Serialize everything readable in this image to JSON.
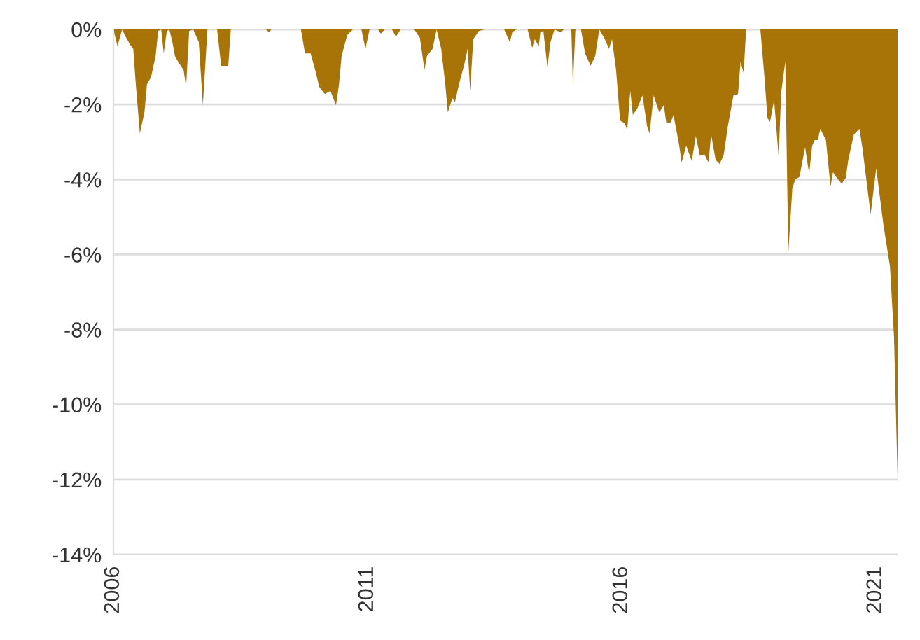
{
  "chart_data": {
    "type": "area",
    "xlim": [
      2006,
      2021.43
    ],
    "ylim": [
      -14,
      0
    ],
    "xticks": [
      2006,
      2011,
      2016,
      2021
    ],
    "yticks": [
      {
        "value": 0,
        "label": "0%"
      },
      {
        "value": -2,
        "label": "-2%"
      },
      {
        "value": -4,
        "label": "-4%"
      },
      {
        "value": -6,
        "label": "-6%"
      },
      {
        "value": -8,
        "label": "-8%"
      },
      {
        "value": -10,
        "label": "-10%"
      },
      {
        "value": -12,
        "label": "-12%"
      },
      {
        "value": -14,
        "label": "-14%"
      }
    ],
    "grid": "y",
    "series": [
      {
        "color": "#a87408",
        "x": [
          2006.0,
          2006.08,
          2006.17,
          2006.25,
          2006.33,
          2006.39,
          2006.44,
          2006.52,
          2006.61,
          2006.66,
          2006.74,
          2006.83,
          2006.88,
          2006.94,
          2006.99,
          2007.05,
          2007.1,
          2007.16,
          2007.21,
          2007.29,
          2007.38,
          2007.43,
          2007.49,
          2007.57,
          2007.68,
          2007.76,
          2007.85,
          2008.04,
          2008.12,
          2008.26,
          2008.31,
          2009.0,
          2009.06,
          2009.11,
          2009.69,
          2009.77,
          2009.88,
          2009.97,
          2010.05,
          2010.16,
          2010.27,
          2010.38,
          2010.44,
          2010.49,
          2010.6,
          2010.71,
          2010.88,
          2010.96,
          2011.04,
          2011.21,
          2011.26,
          2011.34,
          2011.48,
          2011.56,
          2011.65,
          2011.92,
          2012.03,
          2012.12,
          2012.17,
          2012.28,
          2012.36,
          2012.45,
          2012.53,
          2012.58,
          2012.67,
          2012.72,
          2012.8,
          2012.91,
          2012.97,
          2013.02,
          2013.08,
          2013.19,
          2013.3,
          2013.69,
          2013.8,
          2013.85,
          2013.93,
          2014.15,
          2014.24,
          2014.29,
          2014.37,
          2014.4,
          2014.46,
          2014.54,
          2014.6,
          2014.68,
          2014.79,
          2014.87,
          2015.01,
          2015.04,
          2015.09,
          2015.2,
          2015.28,
          2015.39,
          2015.48,
          2015.56,
          2015.67,
          2015.75,
          2015.81,
          2015.89,
          2015.97,
          2016.06,
          2016.11,
          2016.17,
          2016.22,
          2016.3,
          2016.41,
          2016.5,
          2016.55,
          2016.63,
          2016.74,
          2016.83,
          2016.88,
          2016.96,
          2017.02,
          2017.13,
          2017.18,
          2017.27,
          2017.38,
          2017.46,
          2017.54,
          2017.63,
          2017.71,
          2017.76,
          2017.85,
          2017.93,
          2018.01,
          2018.09,
          2018.2,
          2018.29,
          2018.34,
          2018.4,
          2018.45,
          2018.73,
          2018.81,
          2018.87,
          2018.92,
          2019.0,
          2019.09,
          2019.14,
          2019.22,
          2019.28,
          2019.36,
          2019.42,
          2019.5,
          2019.61,
          2019.69,
          2019.75,
          2019.8,
          2019.86,
          2019.91,
          2020.02,
          2020.11,
          2020.16,
          2020.22,
          2020.33,
          2020.41,
          2020.46,
          2020.57,
          2020.68,
          2020.74,
          2020.9,
          2021.01,
          2021.15,
          2021.28,
          2021.36,
          2021.43
        ],
        "values": [
          0,
          -0.45,
          0,
          -0.22,
          -0.41,
          -0.52,
          -1.46,
          -2.77,
          -2.21,
          -1.46,
          -1.27,
          -0.71,
          -0.04,
          0,
          -0.64,
          -0.04,
          0,
          -0.34,
          -0.71,
          -0.9,
          -1.08,
          -1.53,
          -0.04,
          0,
          -0.34,
          -2.02,
          0,
          0,
          -0.97,
          -0.97,
          0,
          0,
          -0.07,
          0,
          0,
          -0.64,
          -0.64,
          -1.08,
          -1.53,
          -1.72,
          -1.64,
          -2.02,
          -1.46,
          -0.71,
          -0.15,
          0,
          0,
          -0.52,
          0,
          0,
          -0.11,
          0,
          0,
          -0.19,
          0,
          0,
          -0.22,
          -1.08,
          -0.71,
          -0.52,
          0,
          -0.52,
          -1.46,
          -2.21,
          -1.83,
          -1.94,
          -1.46,
          -0.9,
          -0.52,
          -1.64,
          -0.26,
          -0.04,
          0,
          0,
          -0.34,
          -0.07,
          0,
          0,
          -0.49,
          -0.26,
          -0.45,
          -0.07,
          -0.04,
          -1.01,
          -0.34,
          0,
          -0.07,
          0,
          0,
          -1.5,
          0,
          0,
          -0.64,
          -0.97,
          -0.71,
          0,
          -0.26,
          -0.52,
          -0.26,
          -1.08,
          -2.43,
          -2.5,
          -2.69,
          -1.64,
          -2.28,
          -2.13,
          -1.76,
          -2.58,
          -2.77,
          -1.76,
          -2.21,
          -2.02,
          -2.5,
          -2.5,
          -2.28,
          -3.07,
          -3.55,
          -3.1,
          -3.51,
          -2.84,
          -3.37,
          -3.33,
          -3.55,
          -2.8,
          -3.48,
          -3.59,
          -3.33,
          -2.58,
          -1.76,
          -1.72,
          -0.86,
          -1.16,
          0,
          0,
          -1.27,
          -2.36,
          -2.47,
          -1.87,
          -3.4,
          -1.68,
          -0.86,
          -5.95,
          -4.22,
          -4.0,
          -3.93,
          -3.14,
          -3.85,
          -3.1,
          -2.95,
          -2.95,
          -2.65,
          -2.95,
          -4.19,
          -3.81,
          -3.93,
          -4.11,
          -3.96,
          -3.48,
          -2.8,
          -2.65,
          -3.18,
          -4.93,
          -3.7,
          -5.2,
          -6.32,
          -8.19,
          -11.93
        ]
      }
    ]
  }
}
